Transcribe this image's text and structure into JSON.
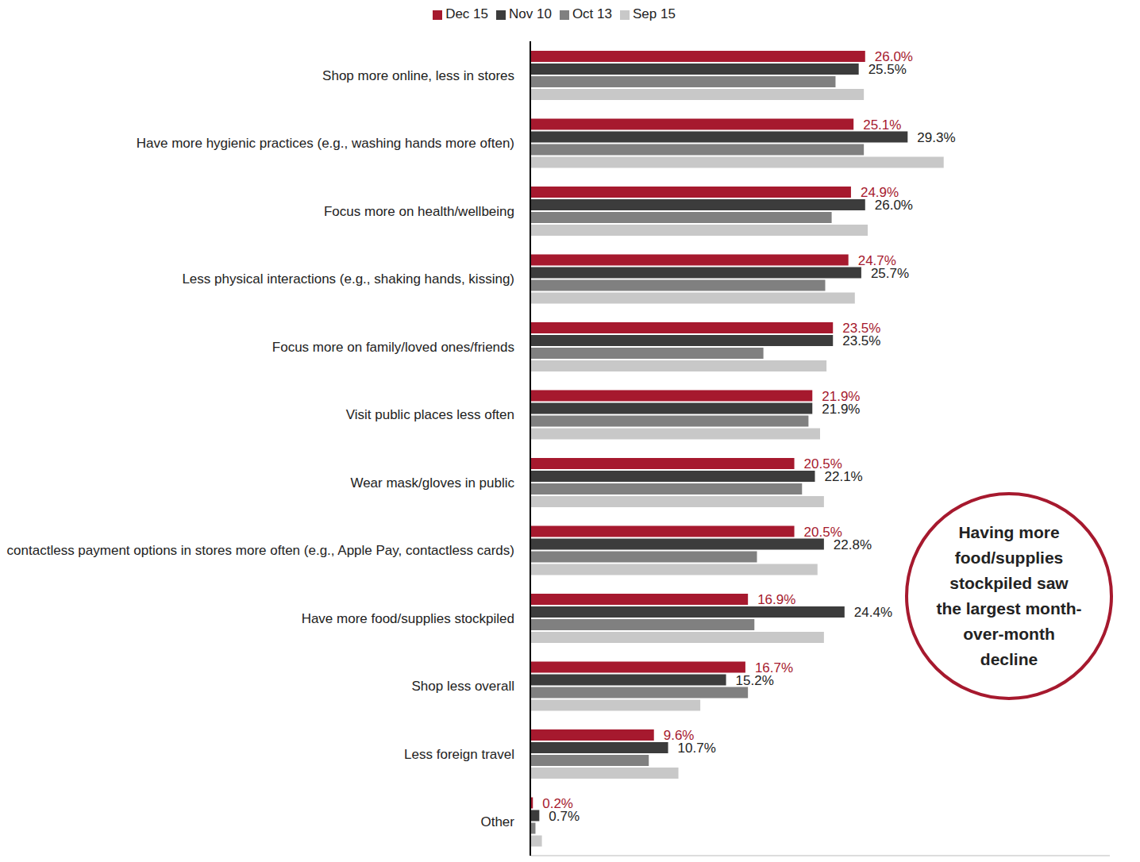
{
  "chart_data": {
    "type": "bar",
    "orientation": "horizontal",
    "tick_labels": "y",
    "legend": "top",
    "xlim": [
      0,
      45
    ],
    "categories": [
      "Shop more online, less in stores",
      "Have more hygienic practices (e.g., washing hands more often)",
      "Focus more on health/wellbeing",
      "Less physical interactions (e.g., shaking hands, kissing)",
      "Focus more on family/loved ones/friends",
      "Visit public places less often",
      "Wear mask/gloves in public",
      "Use contactless payment options in stores more often (e.g., Apple Pay, contactless cards)",
      "Have more food/supplies stockpiled",
      "Shop less overall",
      "Less foreign travel",
      "Other"
    ],
    "series": [
      {
        "name": "Dec 15",
        "color": "#a6192e",
        "data_labels": true,
        "values": [
          26.0,
          25.1,
          24.9,
          24.7,
          23.5,
          21.9,
          20.5,
          20.5,
          16.9,
          16.7,
          9.6,
          0.2
        ],
        "value_labels": [
          "26.0%",
          "25.1%",
          "24.9%",
          "24.7%",
          "23.5%",
          "21.9%",
          "20.5%",
          "20.5%",
          "16.9%",
          "16.7%",
          "9.6%",
          "0.2%"
        ]
      },
      {
        "name": "Nov 10",
        "color": "#3c3c3c",
        "data_labels": true,
        "values": [
          25.5,
          29.3,
          26.0,
          25.7,
          23.5,
          21.9,
          22.1,
          22.8,
          24.4,
          15.2,
          10.7,
          0.7
        ],
        "value_labels": [
          "25.5%",
          "29.3%",
          "26.0%",
          "25.7%",
          "23.5%",
          "21.9%",
          "22.1%",
          "22.8%",
          "24.4%",
          "15.2%",
          "10.7%",
          "0.7%"
        ]
      },
      {
        "name": "Oct 13",
        "color": "#808080",
        "values": [
          23.7,
          25.9,
          23.4,
          22.9,
          18.1,
          21.6,
          21.1,
          17.6,
          17.4,
          16.9,
          9.2,
          0.4
        ]
      },
      {
        "name": "Sep 15",
        "color": "#c8c8c8",
        "values": [
          25.9,
          32.1,
          26.2,
          25.2,
          23.0,
          22.5,
          22.8,
          22.3,
          22.8,
          13.2,
          11.5,
          0.9
        ]
      }
    ],
    "annotations": [
      "Having more food/supplies stockpiled saw the largest month-over-month decline"
    ]
  }
}
